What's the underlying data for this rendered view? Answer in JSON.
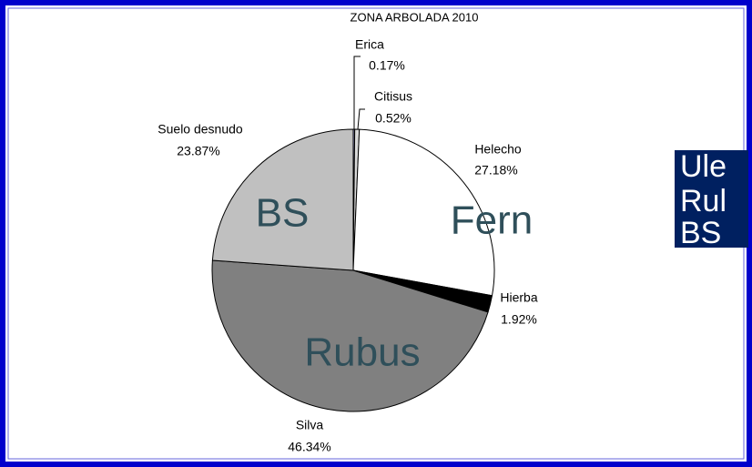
{
  "chart_data": {
    "type": "pie",
    "title": "ZONA ARBOLADA 2010",
    "categories": [
      "Erica",
      "Citisus",
      "Helecho",
      "Hierba",
      "Silva",
      "Suelo desnudo"
    ],
    "values": [
      0.17,
      0.52,
      27.18,
      1.92,
      46.34,
      23.87
    ],
    "value_labels": [
      "0.17%",
      "0.52%",
      "27.18%",
      "1.92%",
      "46.34%",
      "23.87%"
    ],
    "colors": [
      "#9999cc",
      "#d9d9d9",
      "#ffffff",
      "#000000",
      "#808080",
      "#c0c0c0"
    ],
    "annotations": [
      "BS",
      "Fern",
      "Rubus"
    ]
  },
  "side_box": {
    "lines": [
      "Ule",
      "Rul",
      "BS"
    ]
  }
}
